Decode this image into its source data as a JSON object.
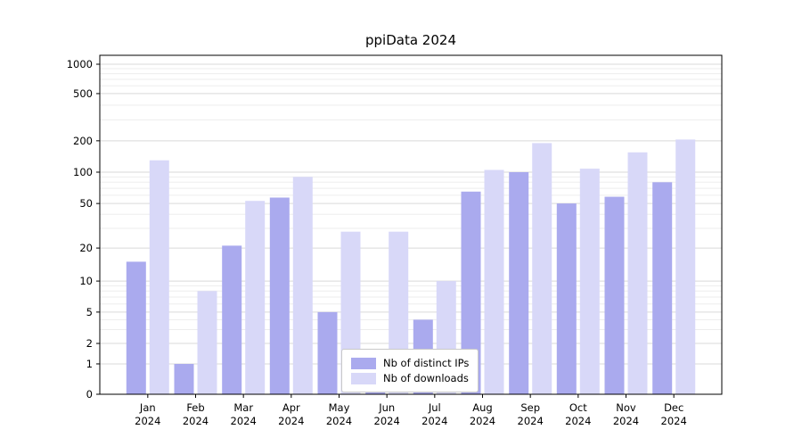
{
  "title": "ppiData 2024",
  "colors": {
    "ips_bar": "#aaaaee",
    "downloads_bar": "#d8d8f8",
    "grid_major": "#d9d9d9",
    "grid_minor": "#ededed",
    "axis": "#000000",
    "text": "#000000",
    "legend_border": "#c9c9c9",
    "background": "#ffffff"
  },
  "chart_data": {
    "type": "bar",
    "title": "ppiData 2024",
    "categories": [
      "Jan",
      "Feb",
      "Mar",
      "Apr",
      "May",
      "Jun",
      "Jul",
      "Aug",
      "Sep",
      "Oct",
      "Nov",
      "Dec"
    ],
    "year": "2024",
    "xlabel": "",
    "ylabel": "",
    "yticks": [
      0,
      1,
      2,
      5,
      10,
      20,
      50,
      100,
      200,
      500,
      1000
    ],
    "ylim": [
      0,
      1000
    ],
    "yscale": "symlog",
    "grid": true,
    "legend_position": "bottom-center-inside",
    "series": [
      {
        "name": "Nb of distinct IPs",
        "color": "#aaaaee",
        "values": [
          15,
          1,
          21,
          57,
          5,
          1,
          4,
          65,
          100,
          50,
          58,
          80
        ]
      },
      {
        "name": "Nb of downloads",
        "color": "#d8d8f8",
        "values": [
          130,
          8,
          53,
          90,
          28,
          28,
          10,
          105,
          190,
          108,
          155,
          205
        ]
      }
    ]
  }
}
